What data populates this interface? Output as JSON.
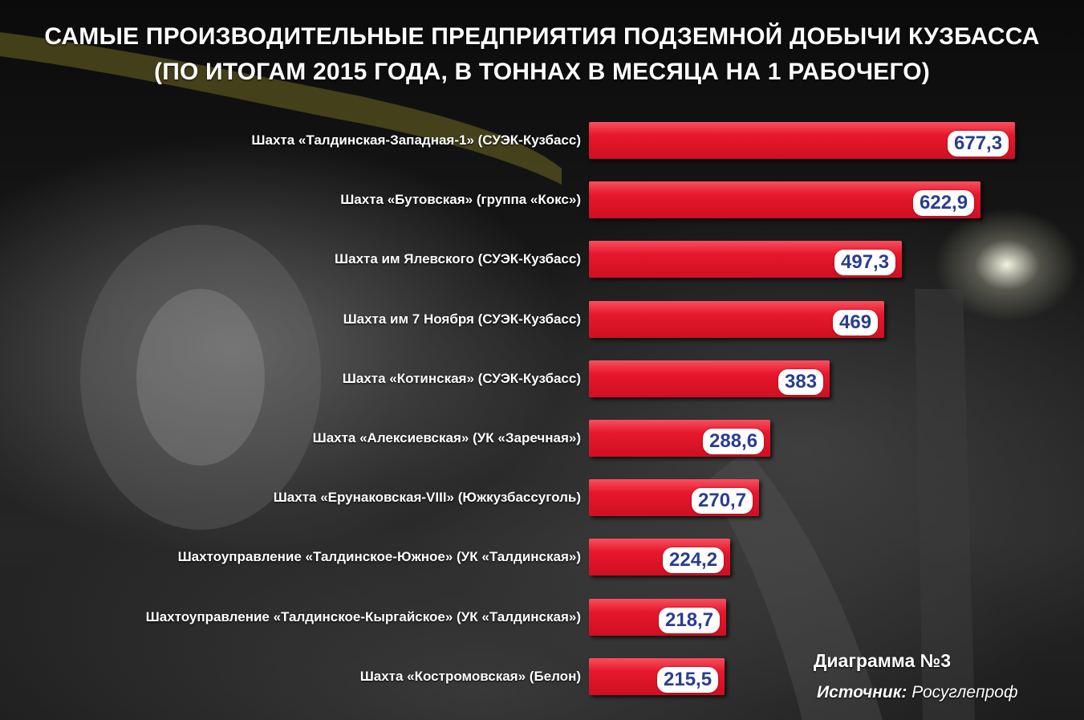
{
  "title_line1": "САМЫЕ ПРОИЗВОДИТЕЛЬНЫЕ ПРЕДПРИЯТИЯ ПОДЗЕМНОЙ ДОБЫЧИ КУЗБАССА",
  "title_line2": "(ПО ИТОГАМ 2015 ГОДА, В ТОННАХ В МЕСЯЦА НА 1 РАБОЧЕГО)",
  "diagram_number": "Диаграмма №3",
  "source_label": "Источник:",
  "source_value": "Росуглепроф",
  "colors": {
    "bar": "#e8182d",
    "value_text": "#2a3d8f",
    "value_bg": "#ffffff"
  },
  "chart_data": {
    "type": "bar",
    "orientation": "horizontal",
    "title": "САМЫЕ ПРОИЗВОДИТЕЛЬНЫЕ ПРЕДПРИЯТИЯ ПОДЗЕМНОЙ ДОБЫЧИ КУЗБАССА (ПО ИТОГАМ 2015 ГОДА, В ТОННАХ В МЕСЯЦА НА 1 РАБОЧЕГО)",
    "categories": [
      "Шахта «Талдинская-Западная-1» (СУЭК-Кузбасс)",
      "Шахта «Бутовская» (группа «Кокс»)",
      "Шахта им Ялевского (СУЭК-Кузбасс)",
      "Шахта им 7 Ноября (СУЭК-Кузбасс)",
      "Шахта «Котинская» (СУЭК-Кузбасс)",
      "Шахта «Алексиевская» (УК «Заречная»)",
      "Шахта «Ерунаковская-VIII» (Южкузбассуголь)",
      "Шахтоуправление «Талдинское-Южное» (УК «Талдинская»)",
      "Шахтоуправление «Талдинское-Кыргайское» (УК «Талдинская»)",
      "Шахта «Костромовская» (Белон)"
    ],
    "values": [
      677.3,
      622.9,
      497.3,
      469,
      383,
      288.6,
      270.7,
      224.2,
      218.7,
      215.5
    ],
    "value_labels": [
      "677,3",
      "622,9",
      "497,3",
      "469",
      "383",
      "288,6",
      "270,7",
      "224,2",
      "218,7",
      "215,5"
    ],
    "grid": false,
    "legend": "none"
  }
}
